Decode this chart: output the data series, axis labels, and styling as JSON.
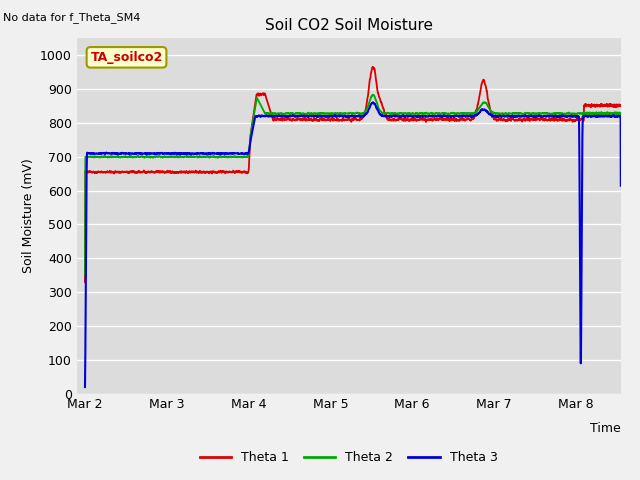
{
  "title": "Soil CO2 Soil Moisture",
  "no_data_text": "No data for f_Theta_SM4",
  "legend_box_text": "TA_soilco2",
  "ylabel": "Soil Moisture (mV)",
  "xlabel": "Time",
  "ylim": [
    0,
    1050
  ],
  "yticks": [
    0,
    100,
    200,
    300,
    400,
    500,
    600,
    700,
    800,
    900,
    1000
  ],
  "background_color": "#dcdcdc",
  "fig_background": "#f0f0f0",
  "line1_color": "#dd0000",
  "line2_color": "#00aa00",
  "line3_color": "#0000dd",
  "legend_labels": [
    "Theta 1",
    "Theta 2",
    "Theta 3"
  ],
  "xlim": [
    -0.1,
    6.55
  ],
  "xtick_pos": [
    0,
    1,
    2,
    3,
    4,
    5,
    6
  ],
  "xtick_labels": [
    "Mar 2",
    "Mar 3",
    "Mar 4",
    "Mar 5",
    "Mar 6",
    "Mar 7",
    "Mar 8"
  ]
}
